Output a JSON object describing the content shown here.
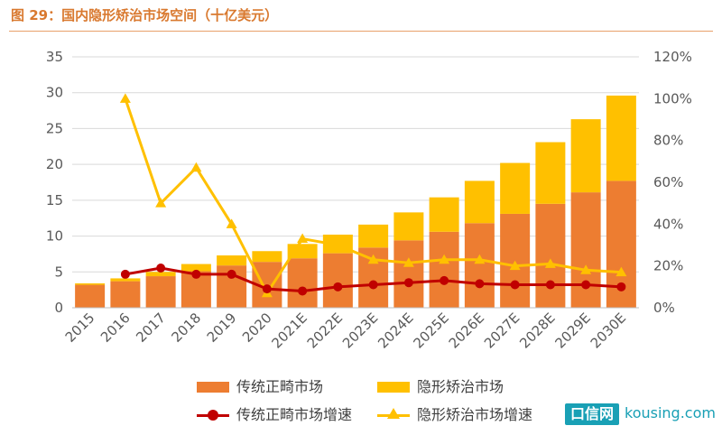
{
  "figure_title": "图 29：国内隐形矫治市场空间（十亿美元）",
  "watermark": {
    "brand": "口信网",
    "domain": "kousing.com"
  },
  "colors": {
    "traditional_bar": "#ed7d31",
    "invisible_bar": "#ffc000",
    "traditional_line": "#c00000",
    "invisible_line": "#ffc000",
    "grid": "#d9d9d9",
    "title": "#d9792f"
  },
  "chart_data": {
    "type": "bar",
    "stacked": true,
    "categories": [
      "2015",
      "2016",
      "2017",
      "2018",
      "2019",
      "2020",
      "2021E",
      "2022E",
      "2023E",
      "2024E",
      "2025E",
      "2026E",
      "2027E",
      "2028E",
      "2029E",
      "2030E"
    ],
    "series": [
      {
        "name": "传统正畸市场",
        "type": "bar",
        "axis": "left",
        "values": [
          3.2,
          3.7,
          4.4,
          5.1,
          5.9,
          6.4,
          6.9,
          7.6,
          8.4,
          9.4,
          10.6,
          11.8,
          13.1,
          14.5,
          16.1,
          17.7
        ]
      },
      {
        "name": "隐形矫治市场",
        "type": "bar",
        "axis": "left",
        "values": [
          0.2,
          0.4,
          0.6,
          1.0,
          1.4,
          1.5,
          2.0,
          2.6,
          3.2,
          3.9,
          4.8,
          5.9,
          7.1,
          8.6,
          10.2,
          11.9
        ]
      },
      {
        "name": "传统正畸市场增速",
        "type": "line",
        "axis": "right",
        "marker": "circle",
        "values": [
          null,
          16,
          19,
          16,
          16,
          9,
          8,
          10,
          11,
          12,
          13,
          11.5,
          11,
          11,
          11,
          10
        ]
      },
      {
        "name": "隐形矫治市场增速",
        "type": "line",
        "axis": "right",
        "marker": "triangle",
        "values": [
          null,
          100,
          50,
          67,
          40,
          7,
          33,
          30,
          23,
          21.5,
          23,
          23,
          20,
          21,
          18,
          17
        ]
      }
    ],
    "yleft": {
      "min": 0,
      "max": 35,
      "ticks": [
        "0",
        "5",
        "10",
        "15",
        "20",
        "25",
        "30",
        "35"
      ]
    },
    "yright": {
      "min": 0,
      "max": 120,
      "ticks": [
        "0%",
        "20%",
        "40%",
        "60%",
        "80%",
        "100%",
        "120%"
      ]
    },
    "grid": true,
    "legend_position": "bottom"
  }
}
